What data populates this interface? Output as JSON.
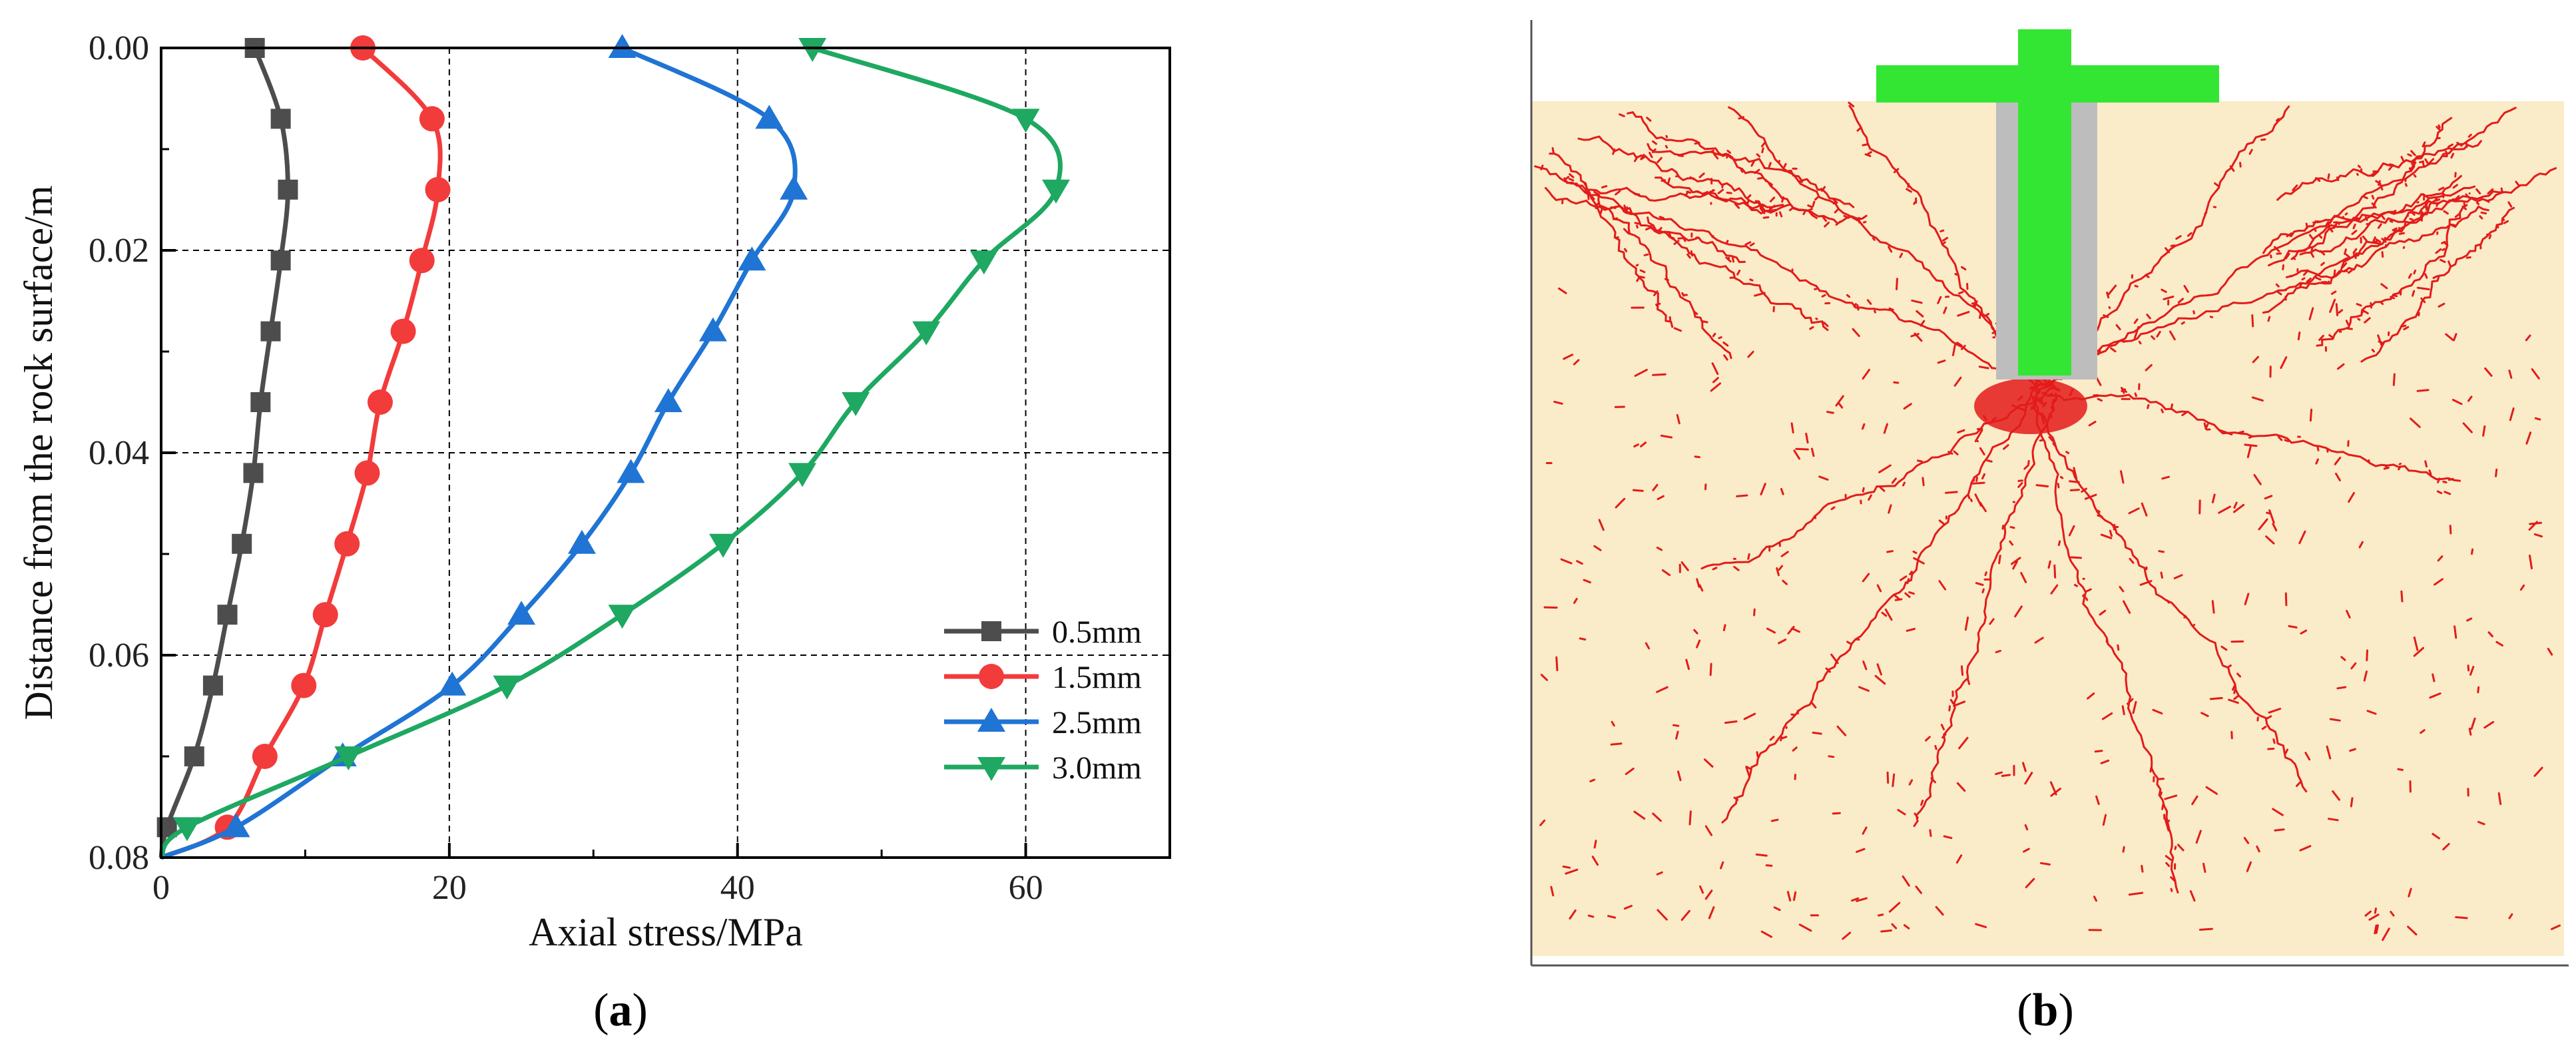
{
  "chart_data": {
    "type": "line",
    "xlabel": "Axial stress/MPa",
    "ylabel": "Distance from the rock surface/m",
    "xlim": [
      0,
      70
    ],
    "ylim": [
      0.08,
      0.0
    ],
    "y_inverted": true,
    "xticks": [
      0,
      20,
      40,
      60
    ],
    "yticks": [
      0.0,
      0.02,
      0.04,
      0.06,
      0.08
    ],
    "xtick_labels": [
      "0",
      "20",
      "40",
      "60"
    ],
    "ytick_labels": [
      "0.00",
      "0.02",
      "0.04",
      "0.06",
      "0.08"
    ],
    "grid": "dashed at 20, 40, 60 MPa and 0.02, 0.04, 0.06 m",
    "legend_position": "bottom-right",
    "series": [
      {
        "name": "0.5mm",
        "color": "#4d4d4d",
        "marker": "square",
        "points": [
          [
            6.5,
            0.0
          ],
          [
            8.3,
            0.007
          ],
          [
            8.8,
            0.014
          ],
          [
            8.3,
            0.021
          ],
          [
            7.6,
            0.028
          ],
          [
            6.9,
            0.035
          ],
          [
            6.4,
            0.042
          ],
          [
            5.6,
            0.049
          ],
          [
            4.6,
            0.056
          ],
          [
            3.6,
            0.063
          ],
          [
            2.3,
            0.07
          ],
          [
            0.4,
            0.077
          ],
          [
            0.0,
            0.08
          ]
        ]
      },
      {
        "name": "1.5mm",
        "color": "#f23b3b",
        "marker": "circle",
        "points": [
          [
            14.0,
            0.0
          ],
          [
            18.8,
            0.007
          ],
          [
            19.2,
            0.014
          ],
          [
            18.1,
            0.021
          ],
          [
            16.8,
            0.028
          ],
          [
            15.2,
            0.035
          ],
          [
            14.3,
            0.042
          ],
          [
            12.9,
            0.049
          ],
          [
            11.4,
            0.056
          ],
          [
            9.9,
            0.063
          ],
          [
            7.2,
            0.07
          ],
          [
            4.6,
            0.077
          ],
          [
            0.0,
            0.08
          ]
        ]
      },
      {
        "name": "2.5mm",
        "color": "#1f74d4",
        "marker": "triangle-up",
        "points": [
          [
            32.0,
            0.0
          ],
          [
            42.2,
            0.007
          ],
          [
            43.9,
            0.014
          ],
          [
            41.0,
            0.021
          ],
          [
            38.3,
            0.028
          ],
          [
            35.2,
            0.035
          ],
          [
            32.6,
            0.042
          ],
          [
            29.2,
            0.049
          ],
          [
            25.0,
            0.056
          ],
          [
            20.2,
            0.063
          ],
          [
            12.6,
            0.07
          ],
          [
            5.2,
            0.077
          ],
          [
            0.0,
            0.08
          ]
        ]
      },
      {
        "name": "3.0mm",
        "color": "#1ea861",
        "marker": "triangle-down",
        "points": [
          [
            45.2,
            0.0
          ],
          [
            60.0,
            0.007
          ],
          [
            62.1,
            0.014
          ],
          [
            57.1,
            0.021
          ],
          [
            53.1,
            0.028
          ],
          [
            48.2,
            0.035
          ],
          [
            44.5,
            0.042
          ],
          [
            39.0,
            0.049
          ],
          [
            32.0,
            0.056
          ],
          [
            24.0,
            0.063
          ],
          [
            13.0,
            0.07
          ],
          [
            1.8,
            0.077
          ],
          [
            0.0,
            0.08
          ]
        ]
      }
    ]
  },
  "captions": {
    "a": {
      "open": "(",
      "letter": "a",
      "close": ")"
    },
    "b": {
      "open": "(",
      "letter": "b",
      "close": ")"
    }
  },
  "simulation": {
    "colors": {
      "rock": "#faecc8",
      "cracks": "#e31b1b",
      "bolt": "#33e633",
      "grout": "#bdbdbd",
      "frame": "#555555"
    }
  }
}
